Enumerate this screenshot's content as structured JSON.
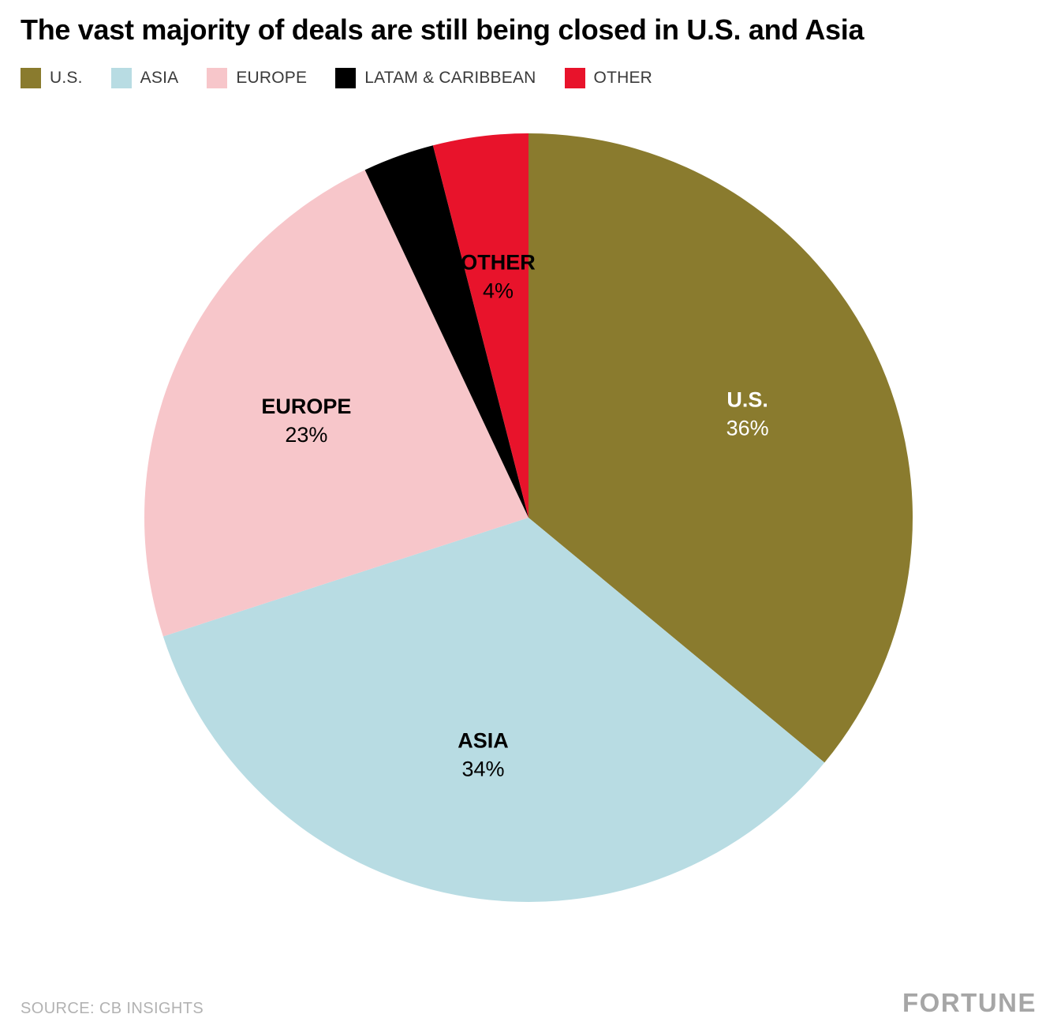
{
  "title": "The vast majority of deals are still being closed in U.S. and Asia",
  "legend": {
    "items": [
      {
        "label": "U.S.",
        "color": "#8a7b2e"
      },
      {
        "label": "ASIA",
        "color": "#b8dce3"
      },
      {
        "label": "EUROPE",
        "color": "#f7c6ca"
      },
      {
        "label": "LATAM & CARIBBEAN",
        "color": "#000000"
      },
      {
        "label": "OTHER",
        "color": "#e8132b"
      }
    ]
  },
  "chart_data": {
    "type": "pie",
    "title": "The vast majority of deals are still being closed in U.S. and Asia",
    "start_angle_deg": -90,
    "direction": "clockwise",
    "legend_position": "top",
    "slices": [
      {
        "label": "U.S.",
        "value_pct": 36,
        "color": "#8a7b2e",
        "label_color": "#ffffff",
        "show_label": true
      },
      {
        "label": "ASIA",
        "value_pct": 34,
        "color": "#b8dce3",
        "label_color": "#000000",
        "show_label": true
      },
      {
        "label": "EUROPE",
        "value_pct": 23,
        "color": "#f7c6ca",
        "label_color": "#000000",
        "show_label": true
      },
      {
        "label": "LATAM & CARIBBEAN",
        "value_pct": 3,
        "color": "#000000",
        "label_color": "#ffffff",
        "show_label": false
      },
      {
        "label": "OTHER",
        "value_pct": 4,
        "color": "#e8132b",
        "label_color": "#000000",
        "show_label": true
      }
    ]
  },
  "footer": {
    "source": "SOURCE: CB INSIGHTS",
    "brand": "FORTUNE"
  }
}
